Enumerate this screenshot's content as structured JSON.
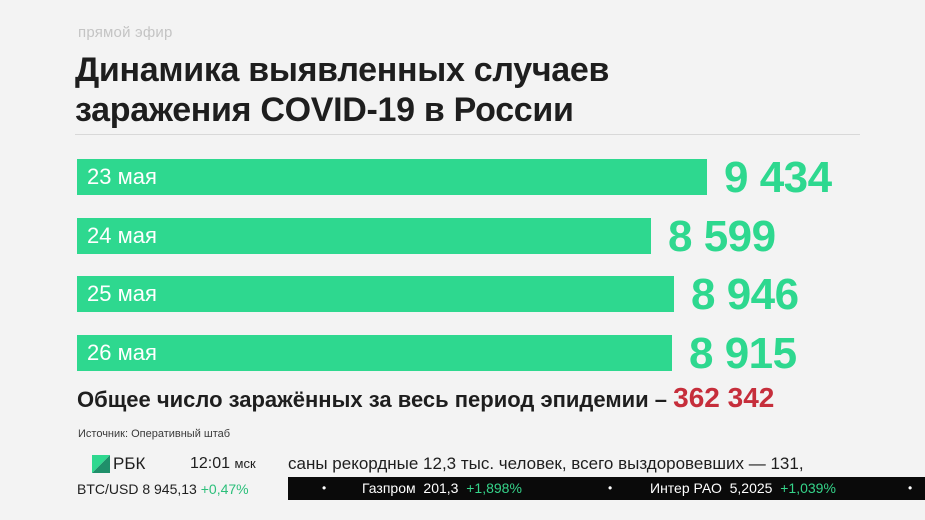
{
  "live_label": "прямой эфир",
  "title_line1": "Динамика выявленных случаев",
  "title_line2": "заражения COVID-19 в России",
  "chart_data": {
    "type": "bar",
    "orientation": "horizontal",
    "categories": [
      "23 мая",
      "24 мая",
      "25 мая",
      "26 мая"
    ],
    "values": [
      9434,
      8599,
      8946,
      8915
    ],
    "value_labels": [
      "9 434",
      "8 599",
      "8 946",
      "8 915"
    ],
    "xlim": [
      0,
      9434
    ],
    "bar_color": "#2ed88f",
    "grid": false,
    "legend": "none"
  },
  "total": {
    "text": "Общее число заражённых за весь период эпидемии –",
    "value": "362 342",
    "color": "#c62e3b"
  },
  "source": "Источник: Оперативный штаб",
  "ticker": {
    "logo_text": "РБК",
    "logo_icon": "rbc-logo-icon",
    "time": "12:01",
    "tz": "мск",
    "crawl_text": "саны рекордные 12,3 тыс. человек, всего выздоровевших — 131,",
    "btc_label": "BTC/USD 8 945,13",
    "btc_change": "+0,47%",
    "stocks": [
      {
        "name": "Газпром",
        "price": "201,3",
        "change": "+1,898%"
      },
      {
        "name": "Интер РАО",
        "price": "5,2025",
        "change": "+1,039%"
      }
    ],
    "separator": "•"
  }
}
